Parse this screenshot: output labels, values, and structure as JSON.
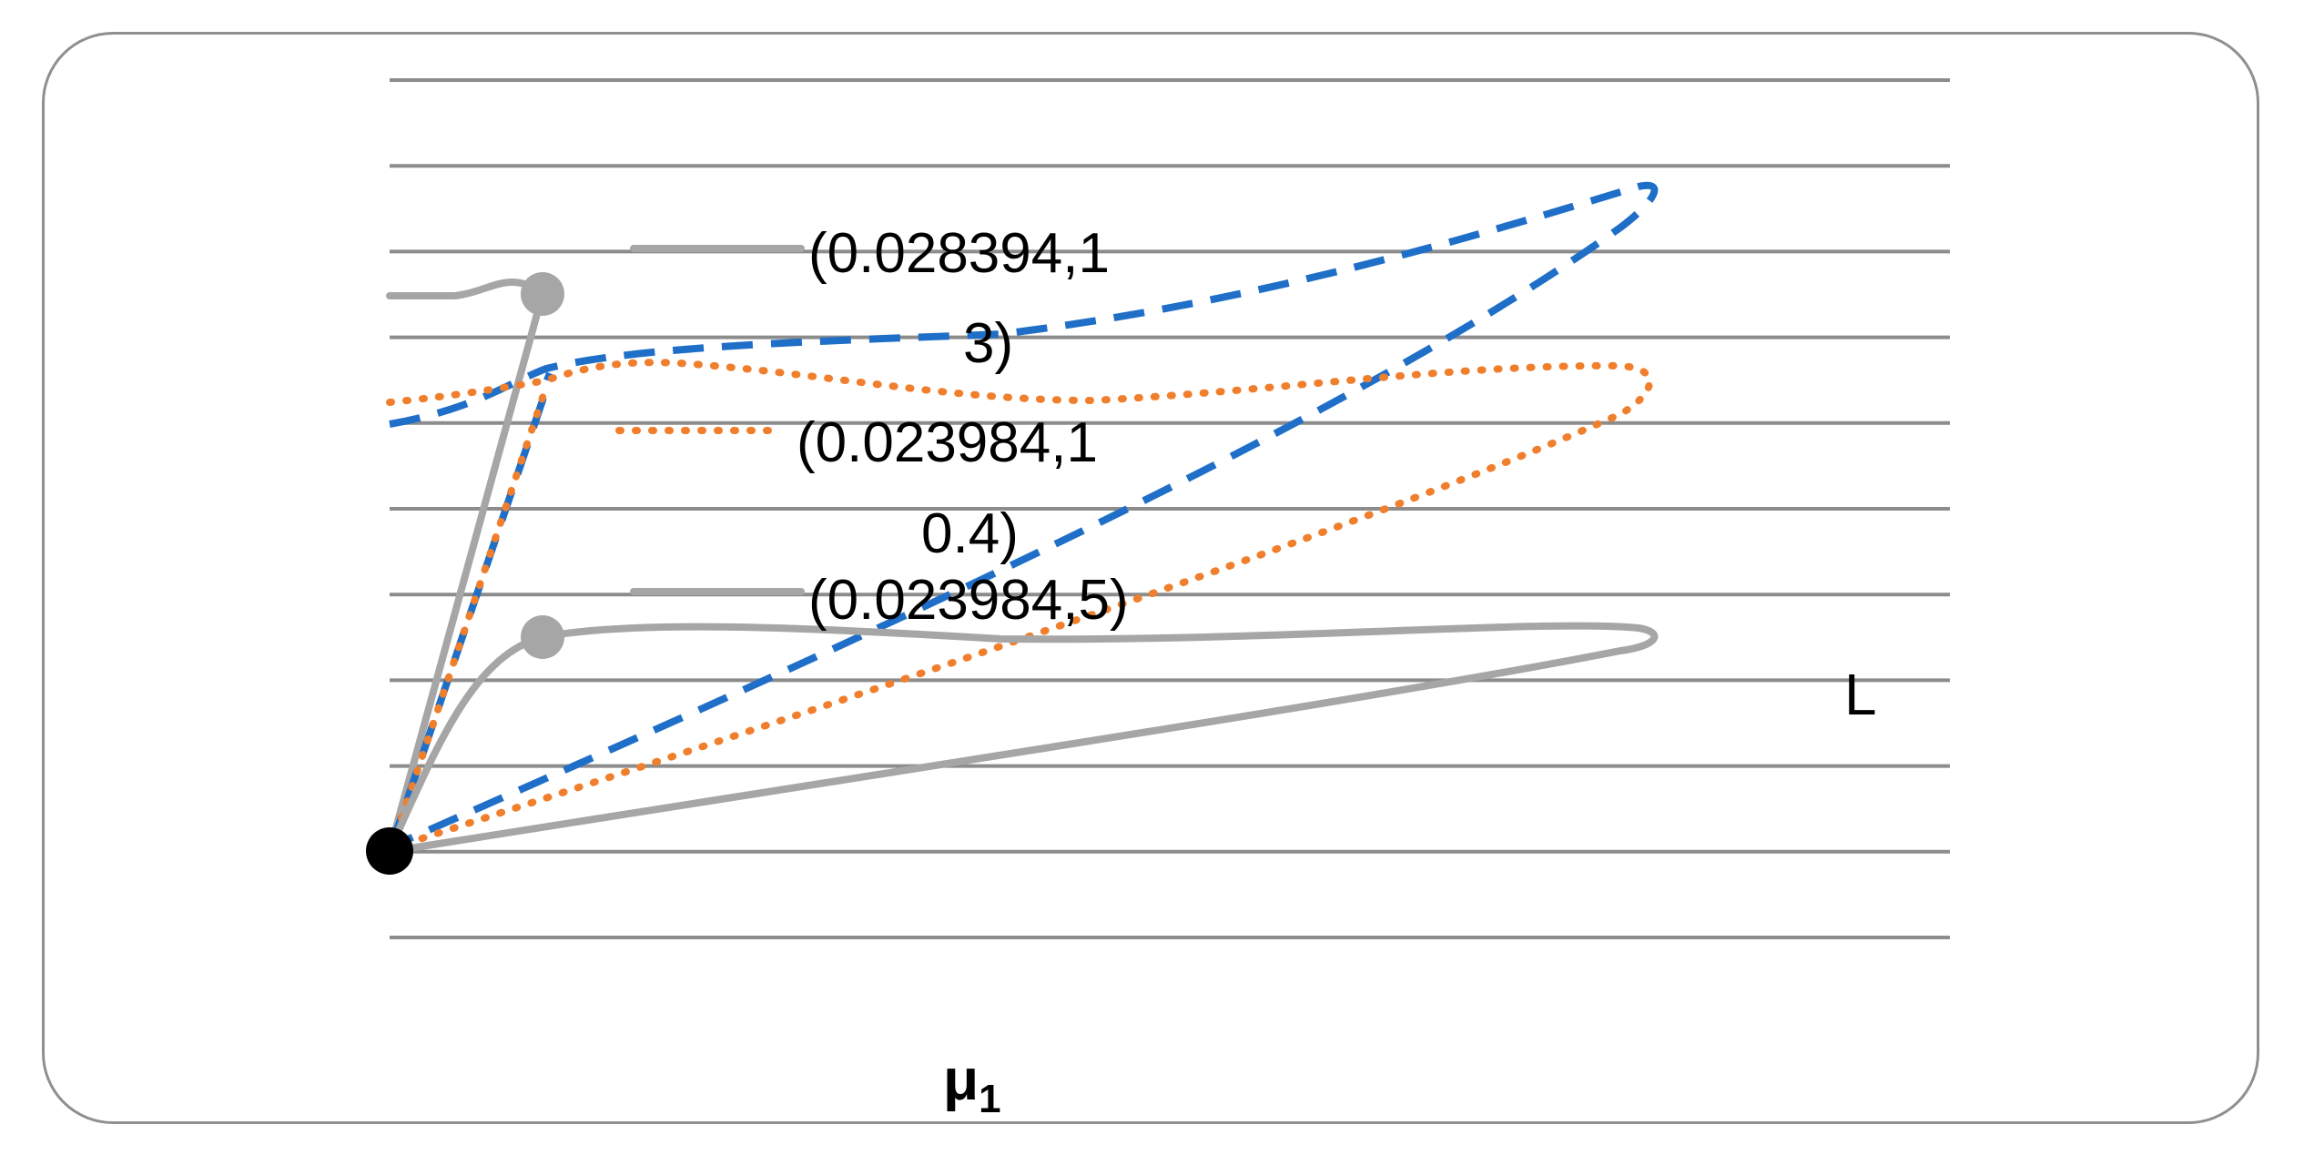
{
  "chart_data": {
    "type": "line",
    "title": "",
    "xlabel": "μ",
    "xlabel_subscript": "1",
    "ylabel": "L",
    "grid": true,
    "gridline_count": 11,
    "legend": "none",
    "colors": {
      "gray": "#a6a6a6",
      "blue": "#1f6fc8",
      "orange": "#f07f2d",
      "grid": "#8c8c8c",
      "origin": "#000000"
    },
    "series": [
      {
        "style": "dashed",
        "color": "blue"
      },
      {
        "style": "dotted",
        "color": "orange"
      },
      {
        "style": "solid",
        "color": "gray"
      }
    ],
    "annotations": [
      {
        "lines": [
          "(0.028394,1",
          "3)"
        ]
      },
      {
        "lines": [
          "(0.023984,1",
          "0.4)"
        ]
      },
      {
        "lines": [
          "(0.023984,5)"
        ]
      }
    ]
  }
}
